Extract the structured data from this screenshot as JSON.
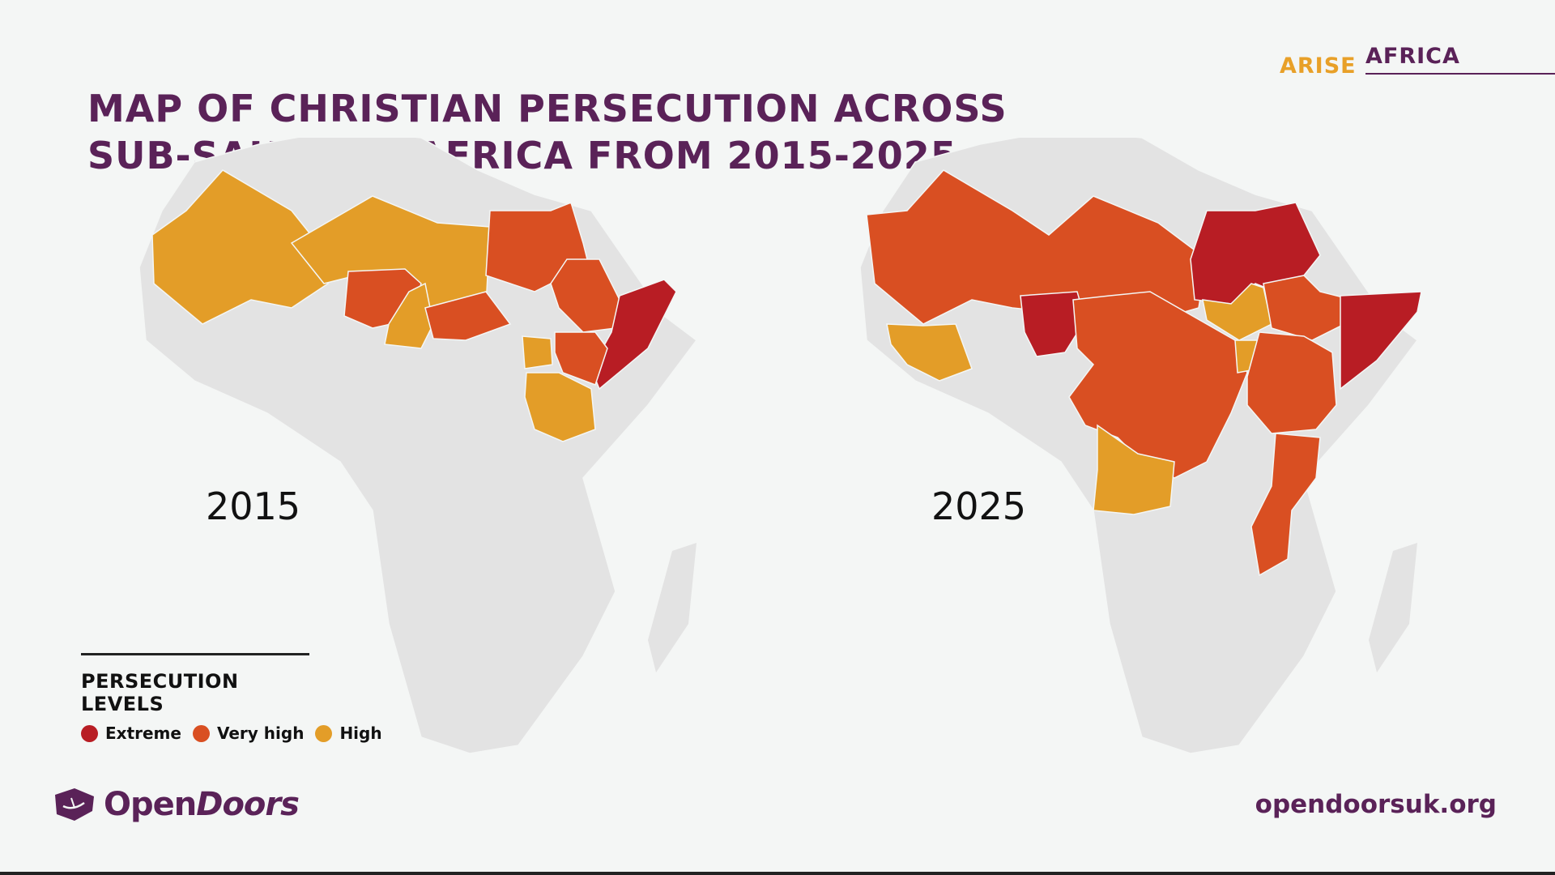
{
  "title": {
    "line1": "MAP OF CHRISTIAN PERSECUTION ACROSS",
    "line2": "SUB-SAHARAN AFRICA FROM 2015-2025"
  },
  "brand": {
    "arise": "ARISE",
    "africa": "AFRICA"
  },
  "maps": [
    {
      "year": "2015"
    },
    {
      "year": "2025"
    }
  ],
  "legend": {
    "title": "PERSECUTION LEVELS",
    "items": [
      {
        "label": "Extreme",
        "color": "#b81d24"
      },
      {
        "label": "Very high",
        "color": "#d94f22"
      },
      {
        "label": "High",
        "color": "#e39d28"
      }
    ]
  },
  "colors": {
    "extreme": "#b81d24",
    "very_high": "#d94f22",
    "high": "#e39d28",
    "land": "#e3e3e3",
    "brand_purple": "#5a2258",
    "brand_orange": "#e8a028"
  },
  "logo": {
    "open": "Open",
    "doors": "Doors",
    "icon": "open-doors-logo-icon"
  },
  "website": "opendoorsuk.org"
}
